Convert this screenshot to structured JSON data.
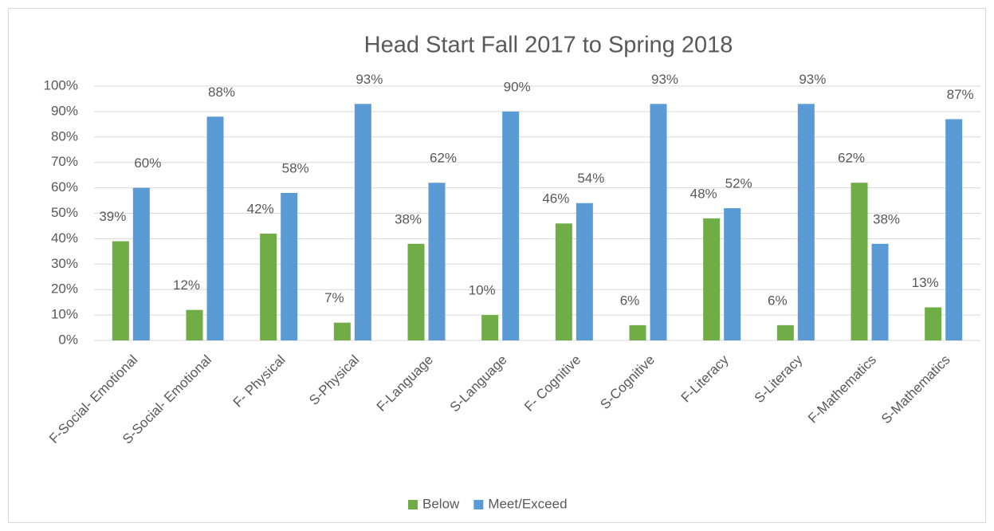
{
  "chart_data": {
    "type": "bar",
    "title": "Head Start Fall 2017 to Spring 2018",
    "categories": [
      "F-Social- Emotional",
      "S-Social- Emotional",
      "F- Physical",
      "S-Physical",
      "F-Language",
      "S-Language",
      "F- Cognitive",
      "S-Cognitive",
      "F-Literacy",
      "S-Literacy",
      "F-Mathematics",
      "S-Mathematics"
    ],
    "series": [
      {
        "name": "Below",
        "color": "#70ad47",
        "values": [
          39,
          12,
          42,
          7,
          38,
          10,
          46,
          6,
          48,
          6,
          62,
          13
        ],
        "value_labels": [
          "39%",
          "12%",
          "42%",
          "7%",
          "38%",
          "10%",
          "46%",
          "6%",
          "48%",
          "6%",
          "62%",
          "13%"
        ]
      },
      {
        "name": "Meet/Exceed",
        "color": "#5b9bd5",
        "values": [
          60,
          88,
          58,
          93,
          62,
          90,
          54,
          93,
          52,
          93,
          38,
          87
        ],
        "value_labels": [
          "60%",
          "88%",
          "58%",
          "93%",
          "62%",
          "90%",
          "54%",
          "93%",
          "52%",
          "93%",
          "38%",
          "87%"
        ]
      }
    ],
    "ylim": [
      0,
      100
    ],
    "yticks": [
      {
        "value": 0,
        "label": "0%"
      },
      {
        "value": 10,
        "label": "10%"
      },
      {
        "value": 20,
        "label": "20%"
      },
      {
        "value": 30,
        "label": "30%"
      },
      {
        "value": 40,
        "label": "40%"
      },
      {
        "value": 50,
        "label": "50%"
      },
      {
        "value": 60,
        "label": "60%"
      },
      {
        "value": 70,
        "label": "70%"
      },
      {
        "value": 80,
        "label": "80%"
      },
      {
        "value": 90,
        "label": "90%"
      },
      {
        "value": 100,
        "label": "100%"
      }
    ],
    "grid": true,
    "legend": "bottom"
  }
}
